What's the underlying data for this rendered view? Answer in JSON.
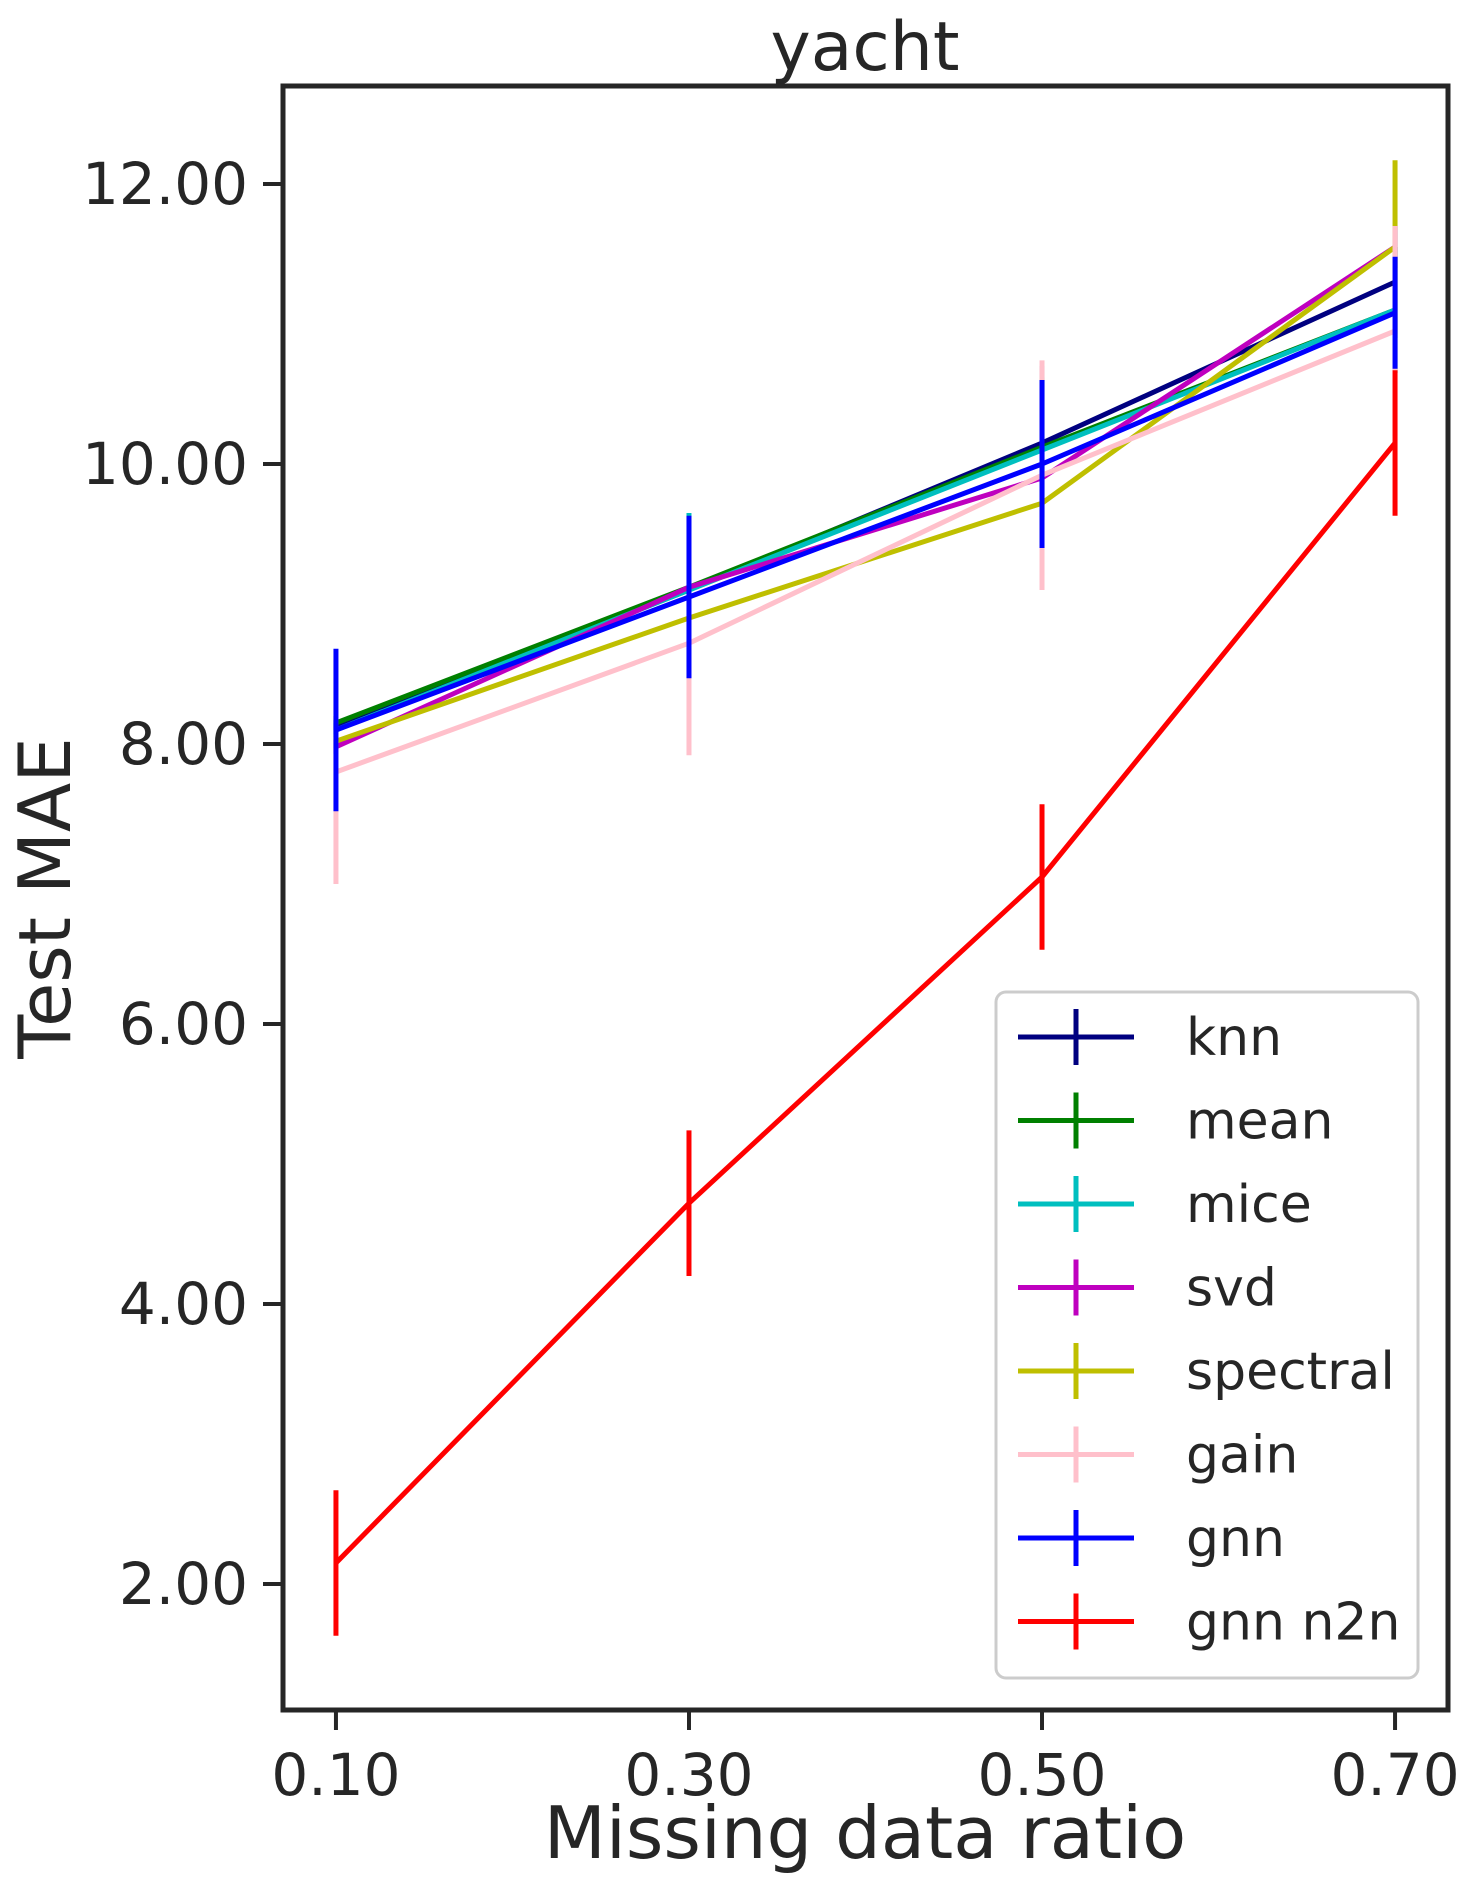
{
  "chart_data": {
    "type": "line",
    "title": "yacht",
    "xlabel": "Missing data ratio",
    "ylabel": "Test MAE",
    "x": [
      0.1,
      0.3,
      0.5,
      0.7
    ],
    "x_tick_labels": [
      "0.10",
      "0.30",
      "0.50",
      "0.70"
    ],
    "y_ticks": [
      2,
      4,
      6,
      8,
      10,
      12
    ],
    "y_tick_labels": [
      "2.00",
      "4.00",
      "6.00",
      "8.00",
      "10.00",
      "12.00"
    ],
    "xlim": [
      0.07,
      0.73
    ],
    "ylim": [
      1.1,
      12.7
    ],
    "grid": false,
    "legend_position": "lower-right",
    "error_bars": true,
    "series": [
      {
        "name": "knn",
        "color": "#000080",
        "values": [
          8.12,
          9.1,
          10.15,
          11.3
        ],
        "errors": [
          0.05,
          0.05,
          0.55,
          0.4
        ]
      },
      {
        "name": "mean",
        "color": "#008000",
        "values": [
          8.15,
          9.12,
          10.12,
          11.1
        ],
        "errors": [
          0.05,
          0.05,
          0.5,
          0.45
        ]
      },
      {
        "name": "mice",
        "color": "#00BFBF",
        "values": [
          8.1,
          9.1,
          10.1,
          11.1
        ],
        "errors": [
          0.05,
          0.55,
          0.5,
          0.45
        ]
      },
      {
        "name": "svd",
        "color": "#BF00BF",
        "values": [
          7.98,
          9.12,
          9.9,
          11.55
        ],
        "errors": [
          0.05,
          0.05,
          0.05,
          0.15
        ]
      },
      {
        "name": "spectral",
        "color": "#BFBF00",
        "values": [
          8.02,
          8.9,
          9.72,
          11.55
        ],
        "errors": [
          0.05,
          0.05,
          0.05,
          0.62
        ]
      },
      {
        "name": "gain",
        "color": "#FFC0CB",
        "values": [
          7.8,
          8.72,
          9.92,
          10.95
        ],
        "errors": [
          0.8,
          0.8,
          0.82,
          0.75
        ]
      },
      {
        "name": "gnn",
        "color": "#0000FF",
        "values": [
          8.1,
          9.05,
          10.0,
          11.08
        ],
        "errors": [
          0.58,
          0.58,
          0.6,
          0.4
        ]
      },
      {
        "name": "gnn n2n",
        "color": "#FF0000",
        "values": [
          2.15,
          4.72,
          7.05,
          10.15
        ],
        "errors": [
          0.52,
          0.52,
          0.52,
          0.52
        ]
      }
    ]
  }
}
